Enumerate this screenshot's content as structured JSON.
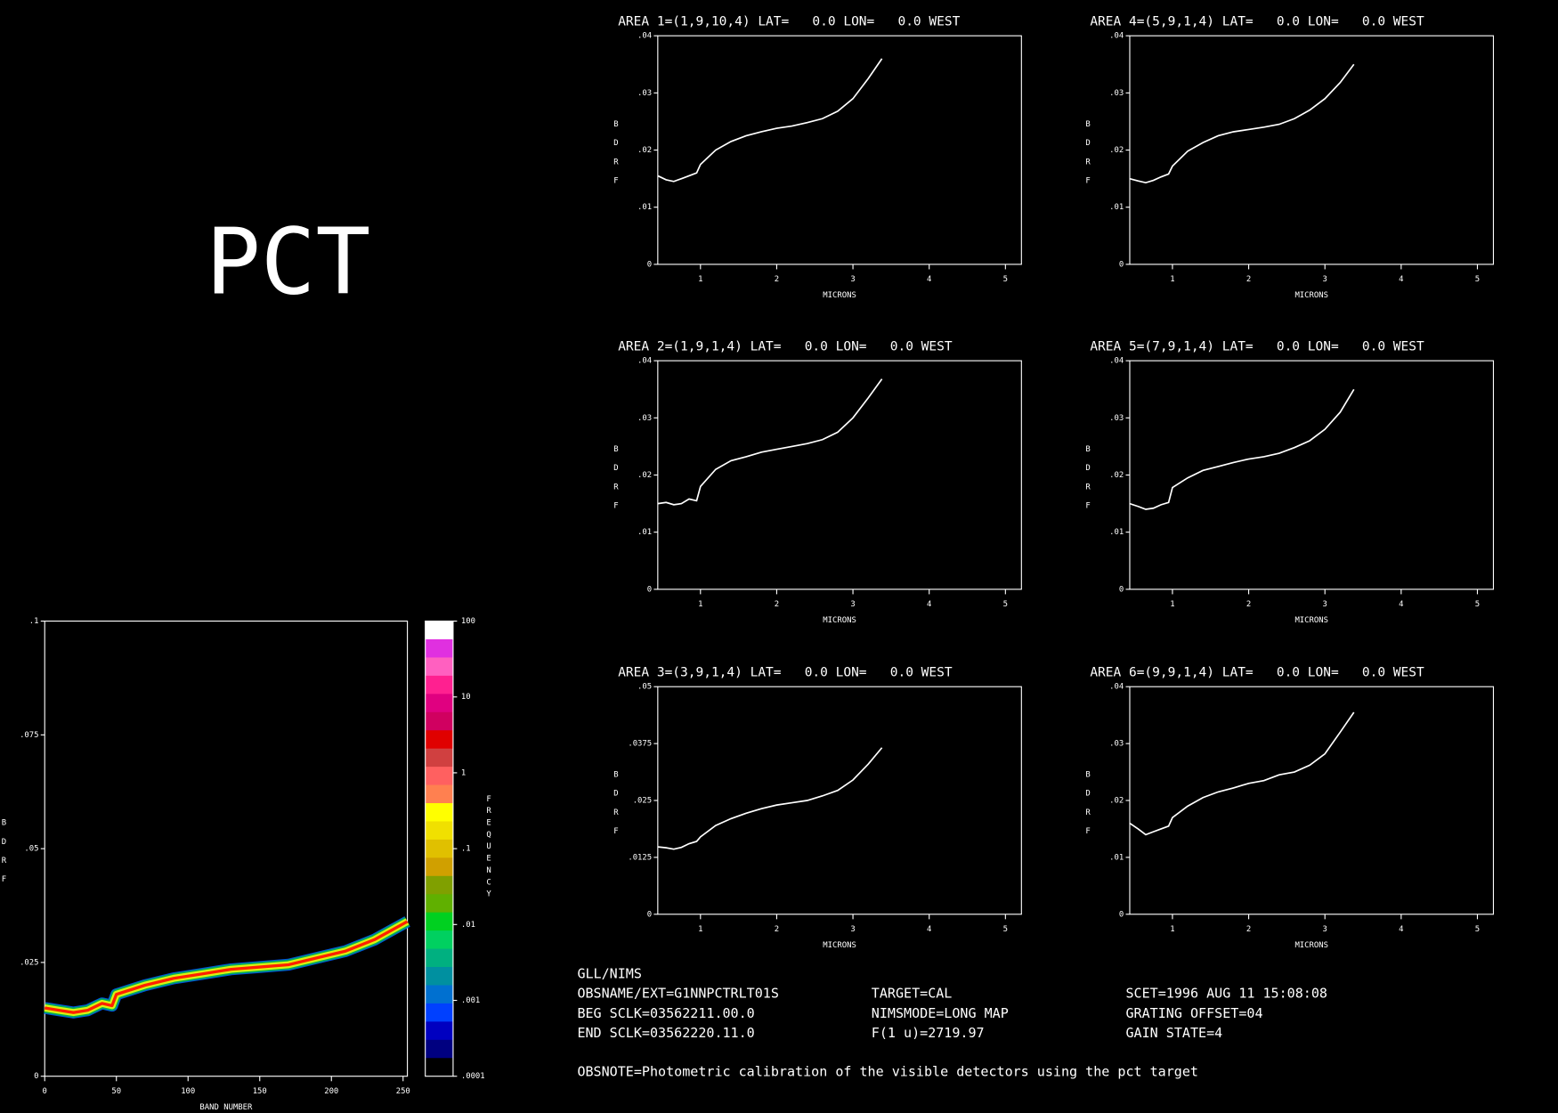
{
  "title": "PCT",
  "info": [
    "GLL/NIMS",
    "OBSNAME/EXT=G1NNPCTRLT01S",
    "TARGET=CAL",
    "SCET=1996 AUG 11 15:08:08",
    "BEG SCLK=03562211.00.0",
    "NIMSMODE=LONG MAP",
    "GRATING OFFSET=04",
    "END SCLK=03562220.11.0",
    "F(1 u)=2719.97",
    "GAIN STATE=4",
    "OBSNOTE=Photometric calibration of the visible detectors using the pct target"
  ],
  "chart_data": [
    {
      "type": "density",
      "xlabel": "BAND NUMBER",
      "ylabel": "BDRF",
      "x": [
        0,
        10,
        20,
        30,
        40,
        47,
        50,
        70,
        90,
        110,
        130,
        150,
        170,
        190,
        210,
        230,
        253
      ],
      "values": [
        0.015,
        0.0145,
        0.014,
        0.0145,
        0.016,
        0.0155,
        0.018,
        0.02,
        0.0215,
        0.0225,
        0.0235,
        0.024,
        0.0245,
        0.026,
        0.0275,
        0.03,
        0.034
      ],
      "xlim": [
        0,
        253
      ],
      "xticks": [
        0,
        50,
        100,
        150,
        200,
        250
      ],
      "ylim": [
        0,
        0.1
      ],
      "yticks": [
        0,
        {
          "value": 0.025,
          "label": ".025"
        },
        {
          "value": 0.05,
          "label": ".05"
        },
        {
          "value": 0.075,
          "label": ".075"
        },
        {
          "value": 0.1,
          "label": ".1"
        }
      ],
      "colorbar": {
        "label": "FREQUENCY",
        "log": true,
        "lim": [
          0.0001,
          100
        ],
        "colors": [
          "#ffffff",
          "#e030e0",
          "#ff60c0",
          "#ff2090",
          "#e00080",
          "#d00060",
          "#e00000",
          "#d04040",
          "#ff6060",
          "#ff8050",
          "#ffff00",
          "#f0e000",
          "#e0c000",
          "#d0a000",
          "#80a000",
          "#60b000",
          "#00d020",
          "#00d060",
          "#00b080",
          "#0090a0",
          "#0070d0",
          "#0040ff",
          "#0000c0",
          "#000080",
          "#000000"
        ],
        "ticks": [
          100,
          10,
          1,
          {
            "value": 0.1,
            "label": ".1"
          },
          {
            "value": 0.01,
            "label": ".01"
          },
          {
            "value": 0.001,
            "label": ".001"
          },
          {
            "value": 0.0001,
            "label": ".0001"
          }
        ]
      }
    },
    {
      "type": "line",
      "title": "AREA 1=(1,9,10,4) LAT=   0.0 LON=   0.0 WEST",
      "xlabel": "MICRONS",
      "ylabel": "BDRF",
      "color": "#ffffff",
      "x": [
        0.44,
        0.55,
        0.65,
        0.75,
        0.85,
        0.95,
        1.0,
        1.2,
        1.4,
        1.6,
        1.8,
        2.0,
        2.2,
        2.4,
        2.6,
        2.8,
        3.0,
        3.2,
        3.38
      ],
      "values": [
        0.0155,
        0.0148,
        0.0145,
        0.015,
        0.0155,
        0.016,
        0.0175,
        0.02,
        0.0215,
        0.0225,
        0.0232,
        0.0238,
        0.0242,
        0.0248,
        0.0255,
        0.0268,
        0.029,
        0.0325,
        0.036
      ],
      "xlim": [
        0.44,
        5.21
      ],
      "xticks": [
        1,
        2,
        3,
        4,
        5
      ],
      "ylim": [
        0,
        0.04
      ],
      "yticks": [
        0,
        {
          "value": 0.01,
          "label": ".01"
        },
        {
          "value": 0.02,
          "label": ".02"
        },
        {
          "value": 0.03,
          "label": ".03"
        },
        {
          "value": 0.04,
          "label": ".04"
        }
      ]
    },
    {
      "type": "line",
      "title": "AREA 2=(1,9,1,4) LAT=   0.0 LON=   0.0 WEST",
      "xlabel": "MICRONS",
      "ylabel": "BDRF",
      "color": "#ffffff",
      "x": [
        0.44,
        0.55,
        0.65,
        0.75,
        0.85,
        0.95,
        1.0,
        1.2,
        1.4,
        1.6,
        1.8,
        2.0,
        2.2,
        2.4,
        2.6,
        2.8,
        3.0,
        3.2,
        3.38
      ],
      "values": [
        0.015,
        0.0152,
        0.0148,
        0.015,
        0.0158,
        0.0155,
        0.018,
        0.021,
        0.0225,
        0.0232,
        0.024,
        0.0245,
        0.025,
        0.0255,
        0.0262,
        0.0275,
        0.03,
        0.0335,
        0.0368
      ],
      "xlim": [
        0.44,
        5.21
      ],
      "xticks": [
        1,
        2,
        3,
        4,
        5
      ],
      "ylim": [
        0,
        0.04
      ],
      "yticks": [
        0,
        {
          "value": 0.01,
          "label": ".01"
        },
        {
          "value": 0.02,
          "label": ".02"
        },
        {
          "value": 0.03,
          "label": ".03"
        },
        {
          "value": 0.04,
          "label": ".04"
        }
      ]
    },
    {
      "type": "line",
      "title": "AREA 3=(3,9,1,4) LAT=   0.0 LON=   0.0 WEST",
      "xlabel": "MICRONS",
      "ylabel": "BDRF",
      "color": "#ffffff",
      "x": [
        0.44,
        0.55,
        0.65,
        0.75,
        0.85,
        0.95,
        1.0,
        1.2,
        1.4,
        1.6,
        1.8,
        2.0,
        2.2,
        2.4,
        2.6,
        2.8,
        3.0,
        3.2,
        3.38
      ],
      "values": [
        0.0148,
        0.0146,
        0.0143,
        0.0147,
        0.0155,
        0.016,
        0.017,
        0.0195,
        0.021,
        0.0222,
        0.0232,
        0.024,
        0.0245,
        0.025,
        0.026,
        0.0272,
        0.0295,
        0.033,
        0.0366
      ],
      "xlim": [
        0.44,
        5.21
      ],
      "xticks": [
        1,
        2,
        3,
        4,
        5
      ],
      "ylim": [
        0,
        0.05
      ],
      "yticks": [
        0,
        {
          "value": 0.0125,
          "label": ".0125"
        },
        {
          "value": 0.025,
          "label": ".025"
        },
        {
          "value": 0.0375,
          "label": ".0375"
        },
        {
          "value": 0.05,
          "label": ".05"
        }
      ]
    },
    {
      "type": "line",
      "title": "AREA 4=(5,9,1,4) LAT=   0.0 LON=   0.0 WEST",
      "xlabel": "MICRONS",
      "ylabel": "BDRF",
      "color": "#ffffff",
      "x": [
        0.44,
        0.55,
        0.65,
        0.75,
        0.85,
        0.95,
        1.0,
        1.2,
        1.4,
        1.6,
        1.8,
        2.0,
        2.2,
        2.4,
        2.6,
        2.8,
        3.0,
        3.2,
        3.38
      ],
      "values": [
        0.015,
        0.0146,
        0.0143,
        0.0147,
        0.0153,
        0.0158,
        0.0172,
        0.0198,
        0.0213,
        0.0225,
        0.0232,
        0.0236,
        0.024,
        0.0245,
        0.0255,
        0.027,
        0.029,
        0.0318,
        0.035
      ],
      "xlim": [
        0.44,
        5.21
      ],
      "xticks": [
        1,
        2,
        3,
        4,
        5
      ],
      "ylim": [
        0,
        0.04
      ],
      "yticks": [
        0,
        {
          "value": 0.01,
          "label": ".01"
        },
        {
          "value": 0.02,
          "label": ".02"
        },
        {
          "value": 0.03,
          "label": ".03"
        },
        {
          "value": 0.04,
          "label": ".04"
        }
      ]
    },
    {
      "type": "line",
      "title": "AREA 5=(7,9,1,4) LAT=   0.0 LON=   0.0 WEST",
      "xlabel": "MICRONS",
      "ylabel": "BDRF",
      "color": "#ffffff",
      "x": [
        0.44,
        0.55,
        0.65,
        0.75,
        0.85,
        0.95,
        1.0,
        1.2,
        1.4,
        1.6,
        1.8,
        2.0,
        2.2,
        2.4,
        2.6,
        2.8,
        3.0,
        3.2,
        3.38
      ],
      "values": [
        0.015,
        0.0145,
        0.014,
        0.0142,
        0.0148,
        0.0152,
        0.0178,
        0.0195,
        0.0208,
        0.0215,
        0.0222,
        0.0228,
        0.0232,
        0.0238,
        0.0248,
        0.026,
        0.028,
        0.031,
        0.035
      ],
      "xlim": [
        0.44,
        5.21
      ],
      "xticks": [
        1,
        2,
        3,
        4,
        5
      ],
      "ylim": [
        0,
        0.04
      ],
      "yticks": [
        0,
        {
          "value": 0.01,
          "label": ".01"
        },
        {
          "value": 0.02,
          "label": ".02"
        },
        {
          "value": 0.03,
          "label": ".03"
        },
        {
          "value": 0.04,
          "label": ".04"
        }
      ]
    },
    {
      "type": "line",
      "title": "AREA 6=(9,9,1,4) LAT=   0.0 LON=   0.0 WEST",
      "xlabel": "MICRONS",
      "ylabel": "BDRF",
      "color": "#ffffff",
      "x": [
        0.44,
        0.55,
        0.65,
        0.75,
        0.85,
        0.95,
        1.0,
        1.2,
        1.4,
        1.6,
        1.8,
        2.0,
        2.2,
        2.4,
        2.6,
        2.8,
        3.0,
        3.2,
        3.38
      ],
      "values": [
        0.016,
        0.015,
        0.014,
        0.0145,
        0.015,
        0.0155,
        0.017,
        0.019,
        0.0205,
        0.0215,
        0.0222,
        0.023,
        0.0235,
        0.0245,
        0.025,
        0.0262,
        0.0282,
        0.032,
        0.0355
      ],
      "xlim": [
        0.44,
        5.21
      ],
      "xticks": [
        1,
        2,
        3,
        4,
        5
      ],
      "ylim": [
        0,
        0.04
      ],
      "yticks": [
        0,
        {
          "value": 0.01,
          "label": ".01"
        },
        {
          "value": 0.02,
          "label": ".02"
        },
        {
          "value": 0.03,
          "label": ".03"
        },
        {
          "value": 0.04,
          "label": ".04"
        }
      ]
    }
  ]
}
